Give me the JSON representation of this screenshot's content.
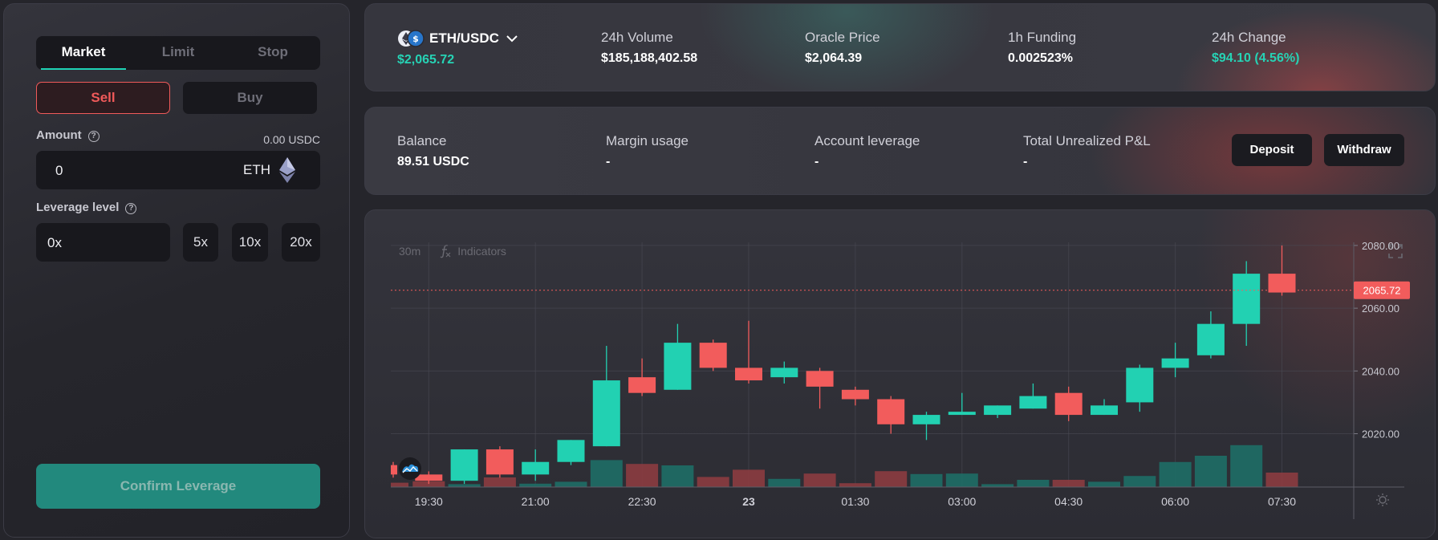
{
  "order": {
    "tabs": [
      {
        "label": "Market",
        "active": true
      },
      {
        "label": "Limit",
        "active": false
      },
      {
        "label": "Stop",
        "active": false
      }
    ],
    "sell_label": "Sell",
    "buy_label": "Buy",
    "amount_label": "Amount",
    "amount_balance": "0.00 USDC",
    "amount_value": "0",
    "amount_unit": "ETH",
    "leverage_label": "Leverage level",
    "leverage_value": "0x",
    "leverage_options": [
      "5x",
      "10x",
      "20x"
    ],
    "confirm_label": "Confirm Leverage",
    "help_glyph": "?"
  },
  "market": {
    "pair": "ETH/USDC",
    "price": "$2,065.72",
    "stats": [
      {
        "label": "24h Volume",
        "value": "$185,188,402.58"
      },
      {
        "label": "Oracle Price",
        "value": "$2,064.39"
      },
      {
        "label": "1h Funding",
        "value": "0.002523%"
      },
      {
        "label": "24h Change",
        "value": "$94.10 (4.56%)"
      }
    ]
  },
  "account": {
    "items": [
      {
        "label": "Balance",
        "value": "89.51 USDC"
      },
      {
        "label": "Margin usage",
        "value": "-"
      },
      {
        "label": "Account leverage",
        "value": "-"
      },
      {
        "label": "Total Unrealized P&L",
        "value": "-"
      }
    ],
    "deposit_label": "Deposit",
    "withdraw_label": "Withdraw"
  },
  "toolbar": {
    "interval": "30m",
    "indicators_label": "Indicators"
  },
  "colors": {
    "up": "#22d1b2",
    "down": "#f25c5c",
    "accent": "#1ed2b4"
  },
  "chart_data": {
    "type": "candlestick",
    "current_price": 2065.72,
    "current_price_label": "2065.72",
    "ylim": [
      2003,
      2081
    ],
    "y_ticks": [
      2020,
      2040,
      2060,
      2080
    ],
    "y_tick_labels": [
      "2020.00",
      "2040.00",
      "2060.00",
      "2080.00"
    ],
    "x_tick_labels": [
      {
        "label": "19:30",
        "index": 1
      },
      {
        "label": "21:00",
        "index": 4
      },
      {
        "label": "22:30",
        "index": 7
      },
      {
        "label": "23",
        "index": 10,
        "bold": true
      },
      {
        "label": "01:30",
        "index": 13
      },
      {
        "label": "03:00",
        "index": 16
      },
      {
        "label": "04:30",
        "index": 19
      },
      {
        "label": "06:00",
        "index": 22
      },
      {
        "label": "07:30",
        "index": 25
      }
    ],
    "candles": [
      {
        "o": 2010,
        "h": 2011,
        "l": 2006,
        "c": 2007,
        "v": 0.09
      },
      {
        "o": 2007,
        "h": 2008,
        "l": 2004,
        "c": 2005,
        "v": 0.12
      },
      {
        "o": 2005,
        "h": 2015,
        "l": 2004,
        "c": 2015,
        "v": 0.06
      },
      {
        "o": 2015,
        "h": 2016,
        "l": 2006,
        "c": 2007,
        "v": 0.2
      },
      {
        "o": 2007,
        "h": 2015,
        "l": 2005,
        "c": 2011,
        "v": 0.07
      },
      {
        "o": 2011,
        "h": 2018,
        "l": 2010,
        "c": 2018,
        "v": 0.11
      },
      {
        "o": 2016,
        "h": 2048,
        "l": 2016,
        "c": 2037,
        "v": 0.56
      },
      {
        "o": 2038,
        "h": 2044,
        "l": 2032,
        "c": 2033,
        "v": 0.48
      },
      {
        "o": 2034,
        "h": 2055,
        "l": 2034,
        "c": 2049,
        "v": 0.45
      },
      {
        "o": 2049,
        "h": 2050,
        "l": 2040,
        "c": 2041,
        "v": 0.21
      },
      {
        "o": 2041,
        "h": 2056,
        "l": 2036,
        "c": 2037,
        "v": 0.36
      },
      {
        "o": 2038,
        "h": 2043,
        "l": 2036,
        "c": 2041,
        "v": 0.17
      },
      {
        "o": 2040,
        "h": 2041,
        "l": 2028,
        "c": 2035,
        "v": 0.28
      },
      {
        "o": 2034,
        "h": 2035,
        "l": 2029,
        "c": 2031,
        "v": 0.08
      },
      {
        "o": 2031,
        "h": 2032,
        "l": 2020,
        "c": 2023,
        "v": 0.33
      },
      {
        "o": 2023,
        "h": 2027,
        "l": 2018,
        "c": 2026,
        "v": 0.27
      },
      {
        "o": 2026,
        "h": 2033,
        "l": 2026,
        "c": 2027,
        "v": 0.28
      },
      {
        "o": 2026,
        "h": 2029,
        "l": 2025,
        "c": 2029,
        "v": 0.06
      },
      {
        "o": 2028,
        "h": 2036,
        "l": 2028,
        "c": 2032,
        "v": 0.15
      },
      {
        "o": 2033,
        "h": 2035,
        "l": 2024,
        "c": 2026,
        "v": 0.15
      },
      {
        "o": 2026,
        "h": 2031,
        "l": 2026,
        "c": 2029,
        "v": 0.11
      },
      {
        "o": 2030,
        "h": 2042,
        "l": 2027,
        "c": 2041,
        "v": 0.23
      },
      {
        "o": 2041,
        "h": 2049,
        "l": 2038,
        "c": 2044,
        "v": 0.52
      },
      {
        "o": 2045,
        "h": 2059,
        "l": 2044,
        "c": 2055,
        "v": 0.65
      },
      {
        "o": 2055,
        "h": 2075,
        "l": 2048,
        "c": 2071,
        "v": 0.87
      },
      {
        "o": 2071,
        "h": 2080,
        "l": 2064,
        "c": 2065,
        "v": 0.3
      }
    ]
  }
}
